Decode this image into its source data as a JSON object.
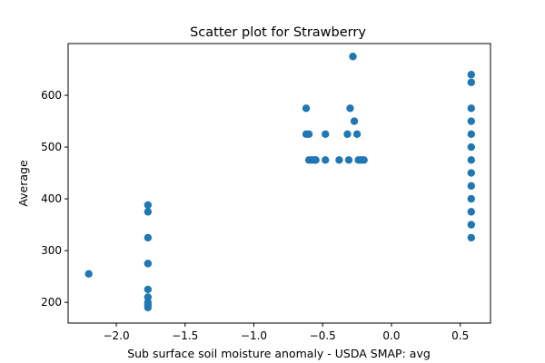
{
  "chart_data": {
    "type": "scatter",
    "title": "Scatter plot for Strawberry",
    "xlabel": "Sub surface soil moisture anomaly - USDA SMAP: avg",
    "ylabel": "Average",
    "xlim": [
      -2.35,
      0.72
    ],
    "ylim": [
      160,
      700
    ],
    "xticks": [
      -2.0,
      -1.5,
      -1.0,
      -0.5,
      0.0,
      0.5
    ],
    "xtick_labels": [
      "−2.0",
      "−1.5",
      "−1.0",
      "−0.5",
      "0.0",
      "0.5"
    ],
    "yticks": [
      200,
      300,
      400,
      500,
      600
    ],
    "ytick_labels": [
      "200",
      "300",
      "400",
      "500",
      "600"
    ],
    "grid": false,
    "marker_color": "#1f77b4",
    "series": [
      {
        "points": [
          [
            -2.2,
            255
          ],
          [
            -1.77,
            388
          ],
          [
            -1.77,
            375
          ],
          [
            -1.77,
            325
          ],
          [
            -1.77,
            275
          ],
          [
            -1.77,
            275
          ],
          [
            -1.77,
            225
          ],
          [
            -1.77,
            210
          ],
          [
            -1.77,
            200
          ],
          [
            -1.77,
            195
          ],
          [
            -1.77,
            190
          ],
          [
            -0.62,
            575
          ],
          [
            -0.62,
            525
          ],
          [
            -0.6,
            525
          ],
          [
            -0.6,
            475
          ],
          [
            -0.58,
            475
          ],
          [
            -0.56,
            475
          ],
          [
            -0.55,
            475
          ],
          [
            -0.48,
            525
          ],
          [
            -0.48,
            475
          ],
          [
            -0.38,
            475
          ],
          [
            -0.32,
            525
          ],
          [
            -0.31,
            475
          ],
          [
            -0.3,
            575
          ],
          [
            -0.28,
            675
          ],
          [
            -0.27,
            550
          ],
          [
            -0.25,
            525
          ],
          [
            -0.24,
            475
          ],
          [
            -0.22,
            475
          ],
          [
            -0.2,
            475
          ],
          [
            0.58,
            640
          ],
          [
            0.58,
            625
          ],
          [
            0.58,
            575
          ],
          [
            0.58,
            550
          ],
          [
            0.58,
            525
          ],
          [
            0.58,
            500
          ],
          [
            0.58,
            475
          ],
          [
            0.58,
            450
          ],
          [
            0.58,
            425
          ],
          [
            0.58,
            400
          ],
          [
            0.58,
            375
          ],
          [
            0.58,
            350
          ],
          [
            0.58,
            325
          ]
        ]
      }
    ]
  }
}
